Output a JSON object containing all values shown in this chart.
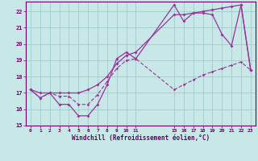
{
  "xlabel": "Windchill (Refroidissement éolien,°C)",
  "background_color": "#c8e8e8",
  "grid_color": "#a0cccc",
  "line_color": "#993399",
  "xlim": [
    -0.5,
    23.5
  ],
  "ylim": [
    15,
    22.6
  ],
  "yticks": [
    15,
    16,
    17,
    18,
    19,
    20,
    21,
    22
  ],
  "xtick_positions": [
    0,
    1,
    2,
    3,
    4,
    5,
    6,
    7,
    8,
    9,
    10,
    11,
    15,
    16,
    17,
    18,
    19,
    20,
    21,
    22,
    23
  ],
  "xtick_labels": [
    "0",
    "1",
    "2",
    "3",
    "4",
    "5",
    "6",
    "7",
    "8",
    "9",
    "10",
    "11",
    "15",
    "16",
    "17",
    "18",
    "19",
    "20",
    "21",
    "22",
    "23"
  ],
  "hours": [
    0,
    1,
    2,
    3,
    4,
    5,
    6,
    7,
    8,
    9,
    10,
    11,
    15,
    16,
    17,
    18,
    19,
    20,
    21,
    22,
    23
  ],
  "temp": [
    17.2,
    16.7,
    17.0,
    16.3,
    16.3,
    15.6,
    15.6,
    16.3,
    17.5,
    19.1,
    19.5,
    19.1,
    22.4,
    21.4,
    21.9,
    21.9,
    21.8,
    20.6,
    19.9,
    22.4,
    18.4
  ],
  "feels_like": [
    17.2,
    17.0,
    17.0,
    17.0,
    17.0,
    17.0,
    17.2,
    17.5,
    18.0,
    18.8,
    19.3,
    19.5,
    21.8,
    21.8,
    21.9,
    22.0,
    22.1,
    22.2,
    22.3,
    22.4,
    18.4
  ],
  "windchill": [
    17.2,
    16.7,
    17.0,
    16.8,
    16.8,
    16.3,
    16.3,
    16.9,
    17.7,
    18.5,
    19.0,
    19.1,
    17.2,
    17.5,
    17.8,
    18.1,
    18.3,
    18.5,
    18.7,
    18.9,
    18.4
  ]
}
